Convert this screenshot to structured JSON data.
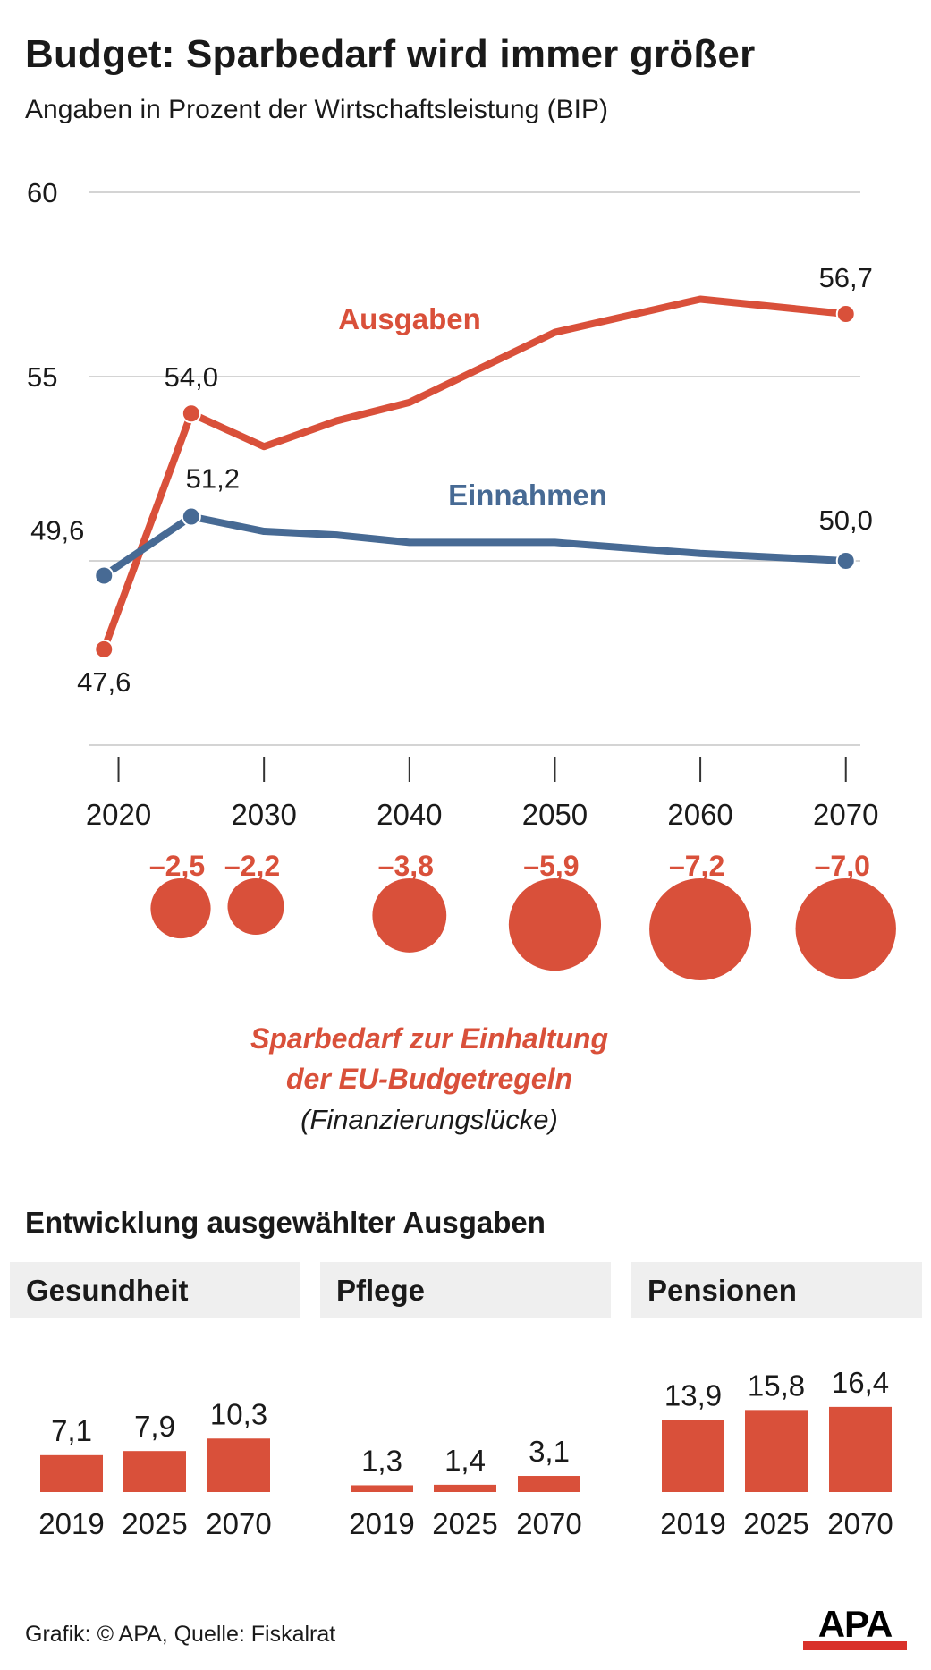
{
  "header": {
    "title": "Budget: Sparbedarf wird immer größer",
    "subtitle": "Angaben in Prozent der Wirtschaftsleistung (BIP)"
  },
  "colors": {
    "ausgaben": "#d9503a",
    "einnahmen": "#476a94",
    "bar": "#d9503a",
    "grid": "#d4d4d4",
    "panel_bg": "#efefef"
  },
  "chart_data": [
    {
      "type": "line",
      "yticks": [
        60,
        55
      ],
      "ylim": [
        45,
        60
      ],
      "xticks": [
        "2020",
        "2030",
        "2040",
        "2050",
        "2060",
        "2070"
      ],
      "xlim": [
        2018,
        2071
      ],
      "grid": true,
      "series": [
        {
          "name": "Ausgaben",
          "x": [
            2019,
            2025,
            2030,
            2035,
            2040,
            2050,
            2060,
            2070
          ],
          "y": [
            47.6,
            54.0,
            53.1,
            53.8,
            54.3,
            56.2,
            57.1,
            56.7
          ],
          "labels": [
            {
              "index": 0,
              "text": "47,6"
            },
            {
              "index": 1,
              "text": "54,0"
            },
            {
              "index": 7,
              "text": "56,7"
            }
          ]
        },
        {
          "name": "Einnahmen",
          "x": [
            2019,
            2025,
            2030,
            2035,
            2040,
            2050,
            2060,
            2070
          ],
          "y": [
            49.6,
            51.2,
            50.8,
            50.7,
            50.5,
            50.5,
            50.2,
            50.0
          ],
          "labels": [
            {
              "index": 0,
              "text": "49,6"
            },
            {
              "index": 1,
              "text": "51,2"
            },
            {
              "index": 7,
              "text": "50,0"
            }
          ]
        }
      ]
    },
    {
      "type": "bubble",
      "title": "Sparbedarf zur Einhaltung der EU-Budgetregeln",
      "subtitle": "(Finanzierungslücke)",
      "x": [
        2025,
        2030,
        2040,
        2050,
        2060,
        2070
      ],
      "values": [
        -2.5,
        -2.2,
        -3.8,
        -5.9,
        -7.2,
        -7.0
      ],
      "labels": [
        "–2,5",
        "–2,2",
        "–3,8",
        "–5,9",
        "–7,2",
        "–7,0"
      ]
    },
    {
      "type": "bar",
      "title": "Gesundheit",
      "categories": [
        "2019",
        "2025",
        "2070"
      ],
      "values": [
        7.1,
        7.9,
        10.3
      ],
      "labels": [
        "7,1",
        "7,9",
        "10,3"
      ]
    },
    {
      "type": "bar",
      "title": "Pflege",
      "categories": [
        "2019",
        "2025",
        "2070"
      ],
      "values": [
        1.3,
        1.4,
        3.1
      ],
      "labels": [
        "1,3",
        "1,4",
        "3,1"
      ]
    },
    {
      "type": "bar",
      "title": "Pensionen",
      "categories": [
        "2019",
        "2025",
        "2070"
      ],
      "values": [
        13.9,
        15.8,
        16.4
      ],
      "labels": [
        "13,9",
        "15,8",
        "16,4"
      ]
    }
  ],
  "bar_section": {
    "title": "Entwicklung ausgewählter Ausgaben"
  },
  "footer": {
    "source": "Grafik: © APA, Quelle: Fiskalrat",
    "logo_text": "APA"
  }
}
